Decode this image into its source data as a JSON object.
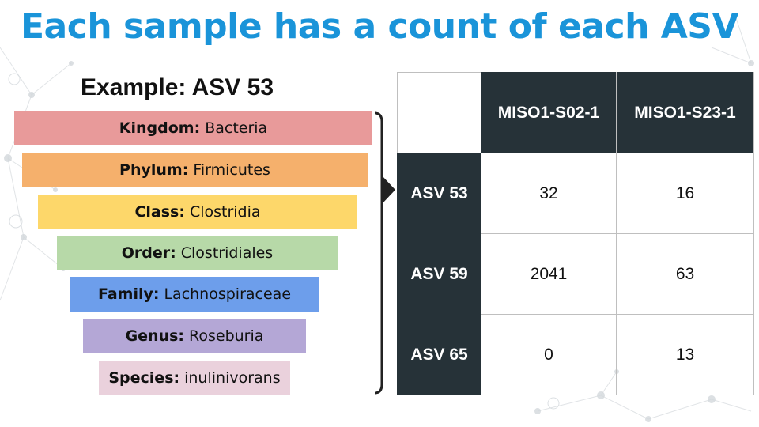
{
  "title": "Each sample has a count of each ASV",
  "example_heading": "Example: ASV 53",
  "taxonomy": [
    {
      "rank": "Kingdom:",
      "name": "Bacteria",
      "color": "#e89a9a"
    },
    {
      "rank": "Phylum:",
      "name": "Firmicutes",
      "color": "#f5b06c"
    },
    {
      "rank": "Class:",
      "name": "Clostridia",
      "color": "#fdd76a"
    },
    {
      "rank": "Order:",
      "name": "Clostridiales",
      "color": "#b7d9a8"
    },
    {
      "rank": "Family:",
      "name": "Lachnospiraceae",
      "color": "#6d9eeb"
    },
    {
      "rank": "Genus:",
      "name": "Roseburia",
      "color": "#b4a7d6"
    },
    {
      "rank": "Species:",
      "name": "inulinivorans",
      "color": "#ead1dc"
    }
  ],
  "table": {
    "columns": [
      "MISO1-S02-1",
      "MISO1-S23-1"
    ],
    "rows": [
      {
        "label": "ASV 53",
        "values": [
          "32",
          "16"
        ]
      },
      {
        "label": "ASV 59",
        "values": [
          "2041",
          "63"
        ]
      },
      {
        "label": "ASV 65",
        "values": [
          "0",
          "13"
        ]
      }
    ],
    "header_color": "#263238"
  },
  "title_color": "#1a94d9"
}
